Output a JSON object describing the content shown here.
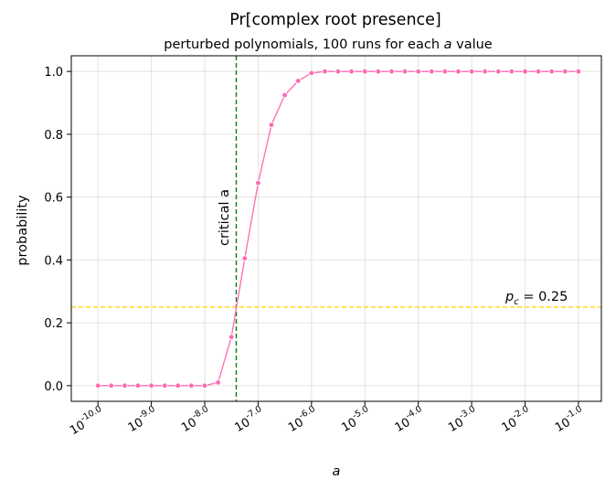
{
  "chart_data": {
    "type": "line",
    "title": "Pr[complex root presence]",
    "subtitle_prefix": "perturbed polynomials, 100 runs for each ",
    "subtitle_var": "a",
    "subtitle_suffix": " value",
    "xlabel": "a",
    "ylabel": "probability",
    "xscale": "log10",
    "xlim": [
      -10.5,
      -0.57
    ],
    "ylim": [
      -0.05,
      1.05
    ],
    "grid": true,
    "x_ticks": [
      -10,
      -9,
      -8,
      -7,
      -6,
      -5,
      -4,
      -3,
      -2,
      -1
    ],
    "x_tick_labels": [
      "-10.0",
      "-9.0",
      "-8.0",
      "-7.0",
      "-6.0",
      "-5.0",
      "-4.0",
      "-3.0",
      "-2.0",
      "-1.0"
    ],
    "x_tick_base": "10",
    "y_ticks": [
      0.0,
      0.2,
      0.4,
      0.6,
      0.8,
      1.0
    ],
    "y_tick_labels": [
      "0.0",
      "0.2",
      "0.4",
      "0.6",
      "0.8",
      "1.0"
    ],
    "series": [
      {
        "color": "#ff69b4",
        "log10_x": [
          -10.0,
          -9.75,
          -9.5,
          -9.25,
          -9.0,
          -8.75,
          -8.5,
          -8.25,
          -8.0,
          -7.75,
          -7.5,
          -7.25,
          -7.0,
          -6.75,
          -6.5,
          -6.25,
          -6.0,
          -5.75,
          -5.5,
          -5.25,
          -5.0,
          -4.75,
          -4.5,
          -4.25,
          -4.0,
          -3.75,
          -3.5,
          -3.25,
          -3.0,
          -2.75,
          -2.5,
          -2.25,
          -2.0,
          -1.75,
          -1.5,
          -1.25,
          -1.0
        ],
        "y": [
          0,
          0,
          0,
          0,
          0,
          0,
          0,
          0,
          0,
          0.01,
          0.155,
          0.405,
          0.645,
          0.83,
          0.925,
          0.97,
          0.995,
          1,
          1,
          1,
          1,
          1,
          1,
          1,
          1,
          1,
          1,
          1,
          1,
          1,
          1,
          1,
          1,
          1,
          1,
          1,
          1
        ]
      }
    ],
    "critical_line": {
      "log10_x": -7.41,
      "color": "#008000",
      "label": "critical a"
    },
    "threshold_line": {
      "y": 0.25,
      "color": "#ffd700",
      "label_var": "p",
      "label_sub": "c",
      "label_rest": " = 0.25"
    }
  }
}
